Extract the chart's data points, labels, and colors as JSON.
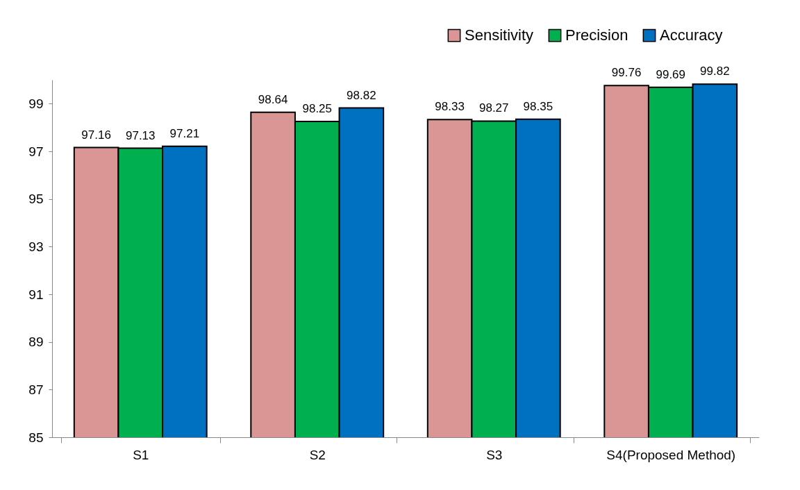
{
  "chart_data": {
    "type": "bar",
    "categories": [
      "S1",
      "S2",
      "S3",
      "S4(Proposed Method)"
    ],
    "series": [
      {
        "name": "Sensitivity",
        "color": "#d99694",
        "values": [
          97.16,
          98.64,
          98.33,
          99.76
        ]
      },
      {
        "name": "Precision",
        "color": "#00b050",
        "values": [
          97.13,
          98.25,
          98.27,
          99.69
        ]
      },
      {
        "name": "Accuracy",
        "color": "#0070c0",
        "values": [
          97.21,
          98.82,
          98.35,
          99.82
        ]
      }
    ],
    "ylim": [
      85,
      100
    ],
    "yticks": [
      85,
      87,
      89,
      91,
      93,
      95,
      97,
      99
    ],
    "grid": false,
    "legend": "top right",
    "data_labels": true
  }
}
